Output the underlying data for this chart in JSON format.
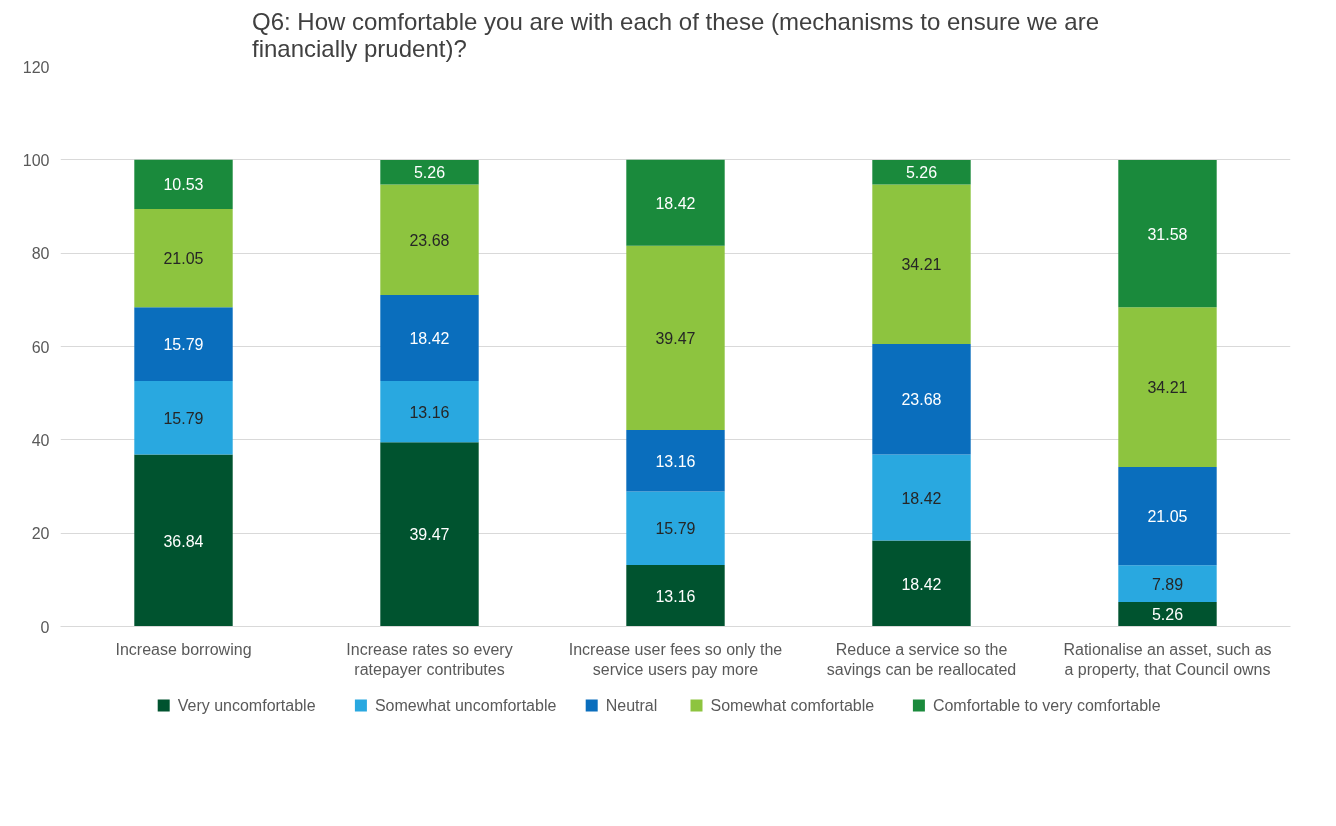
{
  "chart_data": {
    "type": "bar",
    "stacked": true,
    "title": "Q6: How comfortable you are with each of these (mechanisms to ensure we are financially prudent)?",
    "categories": [
      "Increase borrowing",
      "Increase rates so every ratepayer contributes",
      "Increase user fees so only the service users pay more",
      "Reduce a service so the savings can be reallocated",
      "Rationalise an asset, such as a property, that Council owns"
    ],
    "series": [
      {
        "name": "Very uncomfortable",
        "color": "#00532f",
        "values": [
          36.84,
          39.47,
          13.16,
          18.42,
          5.26
        ]
      },
      {
        "name": "Somewhat uncomfortable",
        "color": "#29a8e0",
        "values": [
          15.79,
          13.16,
          15.79,
          18.42,
          7.89
        ]
      },
      {
        "name": "Neutral",
        "color": "#0a6ebd",
        "values": [
          15.79,
          18.42,
          13.16,
          23.68,
          21.05
        ]
      },
      {
        "name": "Somewhat  comfortable",
        "color": "#8dc43f",
        "values": [
          21.05,
          23.68,
          39.47,
          34.21,
          34.21
        ]
      },
      {
        "name": "Comfortable to very comfortable",
        "color": "#1a8a3c",
        "values": [
          10.53,
          5.26,
          18.42,
          5.26,
          31.58
        ]
      }
    ],
    "ylim": [
      0,
      120
    ],
    "yticks": [
      0,
      20,
      40,
      60,
      80,
      100,
      120
    ],
    "grid": "y",
    "legend": "bottom",
    "data_labels": true
  }
}
